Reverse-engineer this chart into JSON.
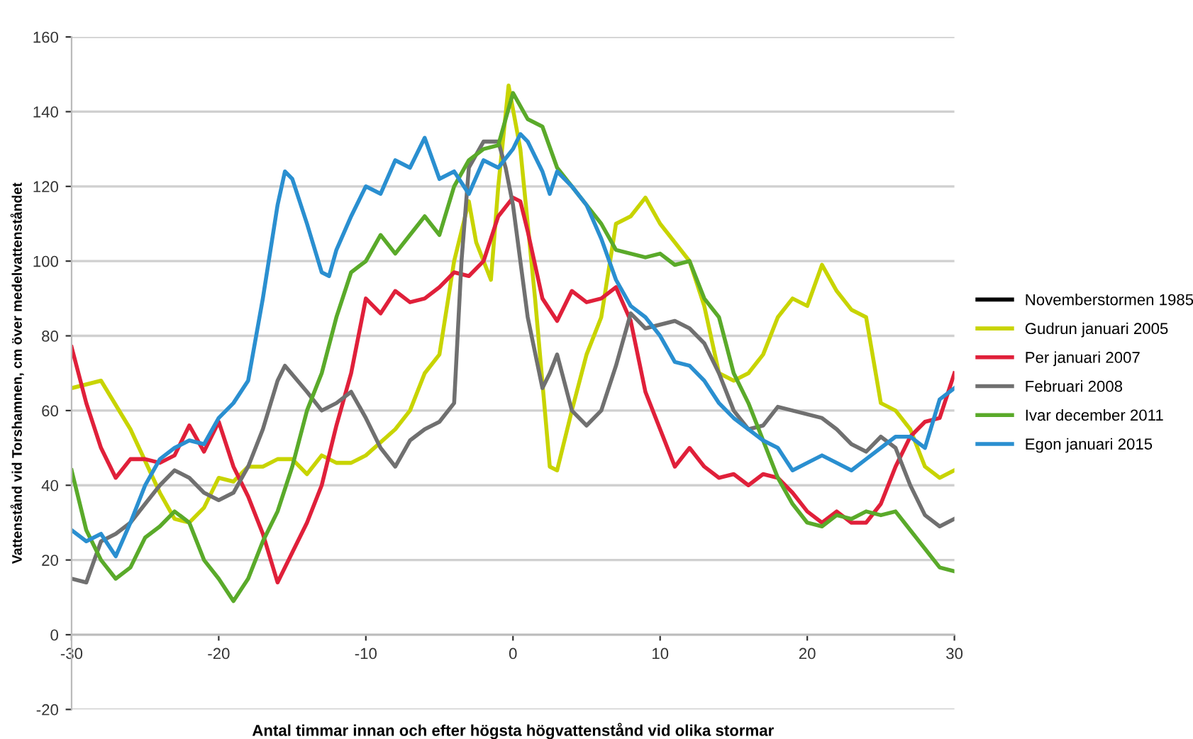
{
  "chart_data": {
    "type": "line",
    "xlabel": "Antal timmar innan och efter högsta högvattenstånd vid olika stormar",
    "ylabel": "Vattenstånd vid Torshamnen, cm över medelvattenståndet",
    "xlim": [
      -30,
      30
    ],
    "xticks": [
      -30,
      -20,
      -10,
      0,
      10,
      20,
      30
    ],
    "ylim": [
      -20,
      160
    ],
    "yticks": [
      -20,
      0,
      20,
      40,
      60,
      80,
      100,
      120,
      140,
      160
    ],
    "grid": "y",
    "legend": "right",
    "marker": "none",
    "line_style": "solid",
    "series": [
      {
        "name": "Novemberstormen 1985",
        "color": "#000000"
      },
      {
        "name": "Gudrun januari 2005",
        "color": "#c8d400",
        "x": [
          -30,
          -28,
          -26,
          -24,
          -23,
          -22,
          -21,
          -20,
          -19,
          -18,
          -17,
          -16,
          -15,
          -14,
          -13,
          -12,
          -11,
          -10,
          -8,
          -7,
          -6,
          -5,
          -4,
          -3,
          -2.5,
          -1.5,
          -1,
          -0.3,
          0.5,
          1.5,
          2.5,
          3,
          4,
          5,
          6,
          7,
          8,
          9,
          10,
          11,
          12,
          13,
          14,
          15,
          16,
          17,
          18,
          19,
          20,
          21,
          22,
          23,
          24,
          25,
          26,
          27,
          28,
          29,
          30
        ],
        "values": [
          66,
          68,
          55,
          38,
          31,
          30,
          34,
          42,
          41,
          45,
          45,
          47,
          47,
          43,
          48,
          46,
          46,
          48,
          55,
          60,
          70,
          75,
          100,
          116,
          105,
          95,
          120,
          147,
          130,
          90,
          45,
          44,
          60,
          75,
          85,
          110,
          112,
          117,
          110,
          105,
          100,
          88,
          70,
          68,
          70,
          75,
          85,
          90,
          88,
          99,
          92,
          87,
          85,
          62,
          60,
          55,
          45,
          42,
          44
        ]
      },
      {
        "name": "Per januari 2007",
        "color": "#e0203a",
        "x": [
          -30,
          -29,
          -28,
          -27,
          -26,
          -25,
          -24,
          -23,
          -22,
          -21,
          -20,
          -19,
          -18,
          -17,
          -16,
          -15,
          -14,
          -13,
          -12,
          -11,
          -10,
          -9,
          -8,
          -7,
          -6,
          -5,
          -4,
          -3,
          -2,
          -1,
          0,
          0.5,
          1,
          2,
          3,
          4,
          5,
          6,
          7,
          8,
          9,
          10,
          11,
          12,
          13,
          14,
          15,
          16,
          17,
          18,
          19,
          20,
          21,
          22,
          23,
          24,
          25,
          26,
          27,
          28,
          29,
          30
        ],
        "values": [
          77,
          62,
          50,
          42,
          47,
          47,
          46,
          48,
          56,
          49,
          57,
          45,
          37,
          27,
          14,
          22,
          30,
          40,
          56,
          70,
          90,
          86,
          92,
          89,
          90,
          93,
          97,
          96,
          100,
          112,
          117,
          116,
          108,
          90,
          84,
          92,
          89,
          90,
          93,
          84,
          65,
          55,
          45,
          50,
          45,
          42,
          43,
          40,
          43,
          42,
          38,
          33,
          30,
          33,
          30,
          30,
          35,
          45,
          53,
          57,
          58,
          70
        ]
      },
      {
        "name": "Februari 2008",
        "color": "#707070",
        "x": [
          -30,
          -29,
          -28,
          -27,
          -26,
          -25,
          -24,
          -23,
          -22,
          -21,
          -20,
          -19,
          -18,
          -17,
          -16,
          -15.5,
          -14,
          -13,
          -12,
          -11,
          -10,
          -9,
          -8,
          -7,
          -6,
          -5,
          -4,
          -3.5,
          -3,
          -2,
          -1,
          -0.5,
          0,
          1,
          2,
          2.5,
          3,
          4,
          5,
          6,
          7,
          8,
          9,
          10,
          11,
          12,
          13,
          14,
          15,
          16,
          17,
          18,
          19,
          20,
          21,
          22,
          23,
          24,
          25,
          26,
          27,
          28,
          29,
          30
        ],
        "values": [
          15,
          14,
          25,
          27,
          30,
          35,
          40,
          44,
          42,
          38,
          36,
          38,
          45,
          55,
          68,
          72,
          65,
          60,
          62,
          65,
          58,
          50,
          45,
          52,
          55,
          57,
          62,
          100,
          125,
          132,
          132,
          125,
          115,
          85,
          66,
          70,
          75,
          60,
          56,
          60,
          72,
          86,
          82,
          83,
          84,
          82,
          78,
          70,
          60,
          55,
          56,
          61,
          60,
          59,
          58,
          55,
          51,
          49,
          53,
          50,
          40,
          32,
          29,
          31
        ]
      },
      {
        "name": "Ivar december 2011",
        "color": "#5aaa2a",
        "x": [
          -30,
          -29,
          -28,
          -27,
          -26,
          -25,
          -24,
          -23,
          -22,
          -21,
          -20,
          -19,
          -18,
          -17,
          -16,
          -15,
          -14,
          -13,
          -12,
          -11,
          -10,
          -9,
          -8,
          -7,
          -6,
          -5,
          -4,
          -3,
          -2,
          -1,
          0,
          1,
          2,
          3,
          4,
          5,
          6,
          7,
          8,
          9,
          10,
          11,
          12,
          13,
          14,
          15,
          16,
          17,
          18,
          19,
          20,
          21,
          22,
          23,
          24,
          25,
          26,
          27,
          28,
          29,
          30
        ],
        "values": [
          44,
          28,
          20,
          15,
          18,
          26,
          29,
          33,
          30,
          20,
          15,
          9,
          15,
          25,
          33,
          45,
          60,
          70,
          85,
          97,
          100,
          107,
          102,
          107,
          112,
          107,
          120,
          127,
          130,
          131,
          145,
          138,
          136,
          125,
          120,
          115,
          110,
          103,
          102,
          101,
          102,
          99,
          100,
          90,
          85,
          70,
          62,
          52,
          42,
          35,
          30,
          29,
          32,
          31,
          33,
          32,
          33,
          28,
          23,
          18,
          17
        ]
      },
      {
        "name": "Egon januari 2015",
        "color": "#2a8fd0",
        "x": [
          -30,
          -29,
          -28,
          -27,
          -26,
          -25,
          -24,
          -23,
          -22,
          -21,
          -20,
          -19,
          -18,
          -17,
          -16,
          -15.5,
          -15,
          -14,
          -13,
          -12.5,
          -12,
          -11,
          -10,
          -9,
          -8,
          -7,
          -6,
          -5,
          -4,
          -3,
          -2,
          -1,
          0,
          0.5,
          1,
          2,
          2.5,
          3,
          4,
          5,
          6,
          7,
          8,
          9,
          10,
          11,
          12,
          13,
          14,
          15,
          16,
          17,
          18,
          19,
          20,
          21,
          22,
          23,
          24,
          25,
          26,
          27,
          28,
          29,
          30
        ],
        "values": [
          28,
          25,
          27,
          21,
          30,
          40,
          47,
          50,
          52,
          51,
          58,
          62,
          68,
          90,
          115,
          124,
          122,
          110,
          97,
          96,
          103,
          112,
          120,
          118,
          127,
          125,
          133,
          122,
          124,
          118,
          127,
          125,
          130,
          134,
          132,
          124,
          118,
          124,
          120,
          115,
          106,
          95,
          88,
          85,
          80,
          73,
          72,
          68,
          62,
          58,
          55,
          52,
          50,
          44,
          46,
          48,
          46,
          44,
          47,
          50,
          53,
          53,
          50,
          63,
          66
        ]
      }
    ]
  }
}
